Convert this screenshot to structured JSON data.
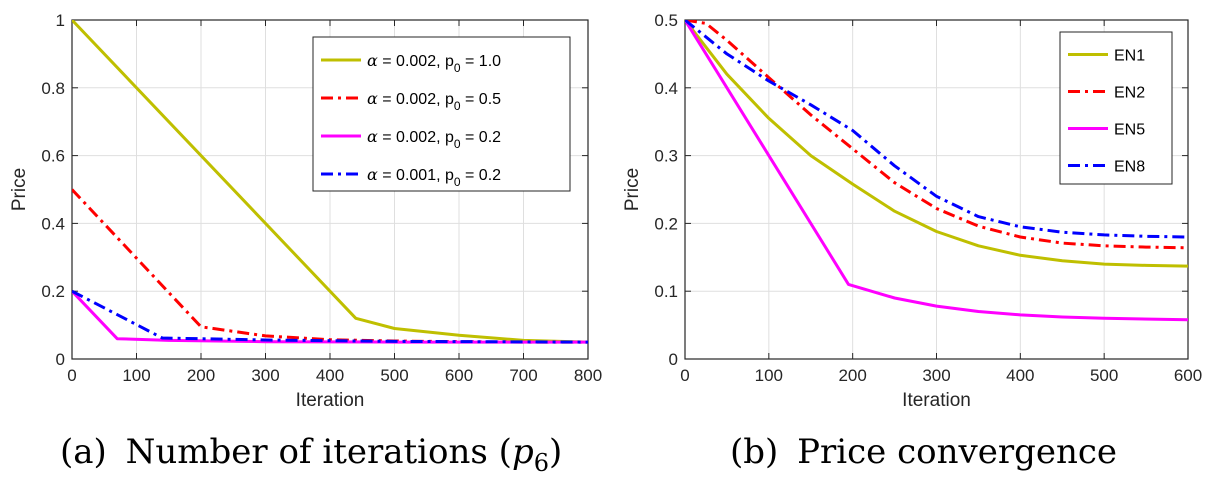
{
  "chart_data": [
    {
      "type": "line",
      "caption_label": "(a)",
      "caption_text": "Number of iterations (",
      "caption_math": "p",
      "caption_sub": "6",
      "caption_close": ")",
      "xlabel": "Iteration",
      "ylabel": "Price",
      "xlim": [
        0,
        800
      ],
      "ylim": [
        0,
        1
      ],
      "xticks": [
        0,
        100,
        200,
        300,
        400,
        500,
        600,
        700,
        800
      ],
      "yticks": [
        0,
        0.2,
        0.4,
        0.6,
        0.8,
        1
      ],
      "xtick_labels": [
        "0",
        "100",
        "200",
        "300",
        "400",
        "500",
        "600",
        "700",
        "800"
      ],
      "ytick_labels": [
        "0",
        "0.2",
        "0.4",
        "0.6",
        "0.8",
        "1"
      ],
      "grid": true,
      "legend_position": "top-right",
      "series": [
        {
          "legend_alpha": "α",
          "legend_rest": " = 0.002, p",
          "legend_sub": "0",
          "legend_end": " = 1.0",
          "color": "#bfbf00",
          "dash": "solid",
          "x": [
            0,
            440,
            500,
            600,
            700,
            800
          ],
          "y": [
            1.0,
            0.12,
            0.09,
            0.07,
            0.055,
            0.05
          ]
        },
        {
          "legend_alpha": "α",
          "legend_rest": " = 0.002, p",
          "legend_sub": "0",
          "legend_end": " = 0.5",
          "color": "#ff0000",
          "dash": "dashdot",
          "x": [
            0,
            200,
            300,
            400,
            500,
            600,
            700,
            800
          ],
          "y": [
            0.5,
            0.095,
            0.068,
            0.057,
            0.053,
            0.051,
            0.05,
            0.05
          ]
        },
        {
          "legend_alpha": "α",
          "legend_rest": " = 0.002, p",
          "legend_sub": "0",
          "legend_end": " = 0.2",
          "color": "#ff00ff",
          "dash": "solid",
          "x": [
            0,
            70,
            150,
            300,
            500,
            800
          ],
          "y": [
            0.2,
            0.06,
            0.055,
            0.051,
            0.05,
            0.05
          ]
        },
        {
          "legend_alpha": "α",
          "legend_rest": " = 0.001, p",
          "legend_sub": "0",
          "legend_end": " = 0.2",
          "color": "#0000ff",
          "dash": "dashdot",
          "x": [
            0,
            140,
            300,
            500,
            800
          ],
          "y": [
            0.2,
            0.062,
            0.056,
            0.052,
            0.05
          ]
        }
      ]
    },
    {
      "type": "line",
      "caption_label": "(b)",
      "caption_text": "Price convergence",
      "xlabel": "Iteration",
      "ylabel": "Price",
      "xlim": [
        0,
        600
      ],
      "ylim": [
        0,
        0.5
      ],
      "xticks": [
        0,
        100,
        200,
        300,
        400,
        500,
        600
      ],
      "yticks": [
        0,
        0.1,
        0.2,
        0.3,
        0.4,
        0.5
      ],
      "xtick_labels": [
        "0",
        "100",
        "200",
        "300",
        "400",
        "500",
        "600"
      ],
      "ytick_labels": [
        "0",
        "0.1",
        "0.2",
        "0.3",
        "0.4",
        "0.5"
      ],
      "grid": true,
      "legend_position": "top-right",
      "series": [
        {
          "name": "EN1",
          "color": "#bfbf00",
          "dash": "solid",
          "x": [
            0,
            50,
            100,
            150,
            200,
            250,
            300,
            350,
            400,
            450,
            500,
            550,
            600
          ],
          "y": [
            0.5,
            0.42,
            0.355,
            0.3,
            0.258,
            0.218,
            0.188,
            0.167,
            0.153,
            0.145,
            0.14,
            0.138,
            0.137
          ]
        },
        {
          "name": "EN2",
          "color": "#ff0000",
          "dash": "dashdot",
          "x": [
            0,
            25,
            50,
            100,
            150,
            200,
            250,
            300,
            350,
            400,
            450,
            500,
            550,
            600
          ],
          "y": [
            0.5,
            0.495,
            0.47,
            0.415,
            0.36,
            0.31,
            0.26,
            0.222,
            0.196,
            0.18,
            0.171,
            0.167,
            0.165,
            0.164
          ]
        },
        {
          "name": "EN5",
          "color": "#ff00ff",
          "dash": "solid",
          "x": [
            0,
            195,
            250,
            300,
            350,
            400,
            450,
            500,
            600
          ],
          "y": [
            0.5,
            0.11,
            0.09,
            0.078,
            0.07,
            0.065,
            0.062,
            0.06,
            0.058
          ]
        },
        {
          "name": "EN8",
          "color": "#0000ff",
          "dash": "dashdot",
          "x": [
            0,
            50,
            100,
            150,
            200,
            250,
            300,
            350,
            400,
            450,
            500,
            550,
            600
          ],
          "y": [
            0.5,
            0.45,
            0.41,
            0.375,
            0.337,
            0.285,
            0.24,
            0.21,
            0.195,
            0.187,
            0.183,
            0.181,
            0.18
          ]
        }
      ]
    }
  ]
}
